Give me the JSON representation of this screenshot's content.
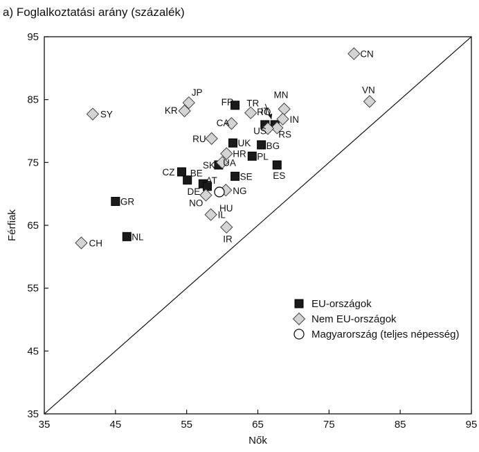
{
  "chart_data": {
    "type": "scatter",
    "title": "a) Foglalkoztatási arány (százalék)",
    "xlabel": "Nők",
    "ylabel": "Férfiak",
    "xlim": [
      35,
      95
    ],
    "ylim": [
      35,
      95
    ],
    "x_ticks": [
      35,
      45,
      55,
      65,
      75,
      85,
      95
    ],
    "y_ticks": [
      35,
      45,
      55,
      65,
      75,
      85,
      95
    ],
    "grid": false,
    "reference_line": "diagonal",
    "legend_position": "lower-right",
    "series": [
      {
        "name": "EU-országok",
        "marker": "square",
        "color": "#1a1a1a",
        "points": [
          {
            "label": "FR",
            "x": 61.8,
            "y": 84.1
          },
          {
            "label": "RO",
            "x": 67.4,
            "y": 81.0
          },
          {
            "label": "IT",
            "x": 66.0,
            "y": 81.0
          },
          {
            "label": "UK",
            "x": 61.5,
            "y": 78.1
          },
          {
            "label": "BG",
            "x": 65.5,
            "y": 77.8
          },
          {
            "label": "PL",
            "x": 64.2,
            "y": 76.0
          },
          {
            "label": "ES",
            "x": 67.7,
            "y": 74.6
          },
          {
            "label": "CZ",
            "x": 54.3,
            "y": 73.5
          },
          {
            "label": "BE",
            "x": 55.1,
            "y": 72.2
          },
          {
            "label": "SK",
            "x": 59.5,
            "y": 74.6
          },
          {
            "label": "SE",
            "x": 61.8,
            "y": 72.8
          },
          {
            "label": "DE",
            "x": 57.3,
            "y": 71.6
          },
          {
            "label": "AT",
            "x": 57.9,
            "y": 71.2
          },
          {
            "label": "GR",
            "x": 45.0,
            "y": 68.8
          },
          {
            "label": "NL",
            "x": 46.6,
            "y": 63.2
          }
        ]
      },
      {
        "name": "Nem EU-országok",
        "marker": "diamond",
        "color": "#d4d4d4",
        "points": [
          {
            "label": "CN",
            "x": 78.5,
            "y": 92.3
          },
          {
            "label": "VN",
            "x": 80.7,
            "y": 84.7
          },
          {
            "label": "JP",
            "x": 55.3,
            "y": 84.5
          },
          {
            "label": "KR",
            "x": 54.7,
            "y": 83.2
          },
          {
            "label": "SY",
            "x": 41.8,
            "y": 82.7
          },
          {
            "label": "TR",
            "x": 64.0,
            "y": 82.9
          },
          {
            "label": "MN",
            "x": 68.7,
            "y": 83.5
          },
          {
            "label": "IN",
            "x": 68.5,
            "y": 81.9
          },
          {
            "label": "RS",
            "x": 67.7,
            "y": 80.5
          },
          {
            "label": "US",
            "x": 66.4,
            "y": 80.4
          },
          {
            "label": "CA",
            "x": 61.3,
            "y": 81.2
          },
          {
            "label": "RU",
            "x": 58.5,
            "y": 78.8
          },
          {
            "label": "HR",
            "x": 60.6,
            "y": 76.4
          },
          {
            "label": "UA",
            "x": 60.0,
            "y": 75.0
          },
          {
            "label": "NG",
            "x": 60.5,
            "y": 70.6
          },
          {
            "label": "NO",
            "x": 57.7,
            "y": 69.8
          },
          {
            "label": "IL",
            "x": 58.4,
            "y": 66.7
          },
          {
            "label": "IR",
            "x": 60.6,
            "y": 64.7
          },
          {
            "label": "CH",
            "x": 40.2,
            "y": 62.2
          }
        ]
      },
      {
        "name": "Magyarország (teljes népesség)",
        "marker": "circle",
        "color": "#ffffff",
        "points": [
          {
            "label": "HU",
            "x": 59.6,
            "y": 70.3
          }
        ]
      }
    ]
  }
}
